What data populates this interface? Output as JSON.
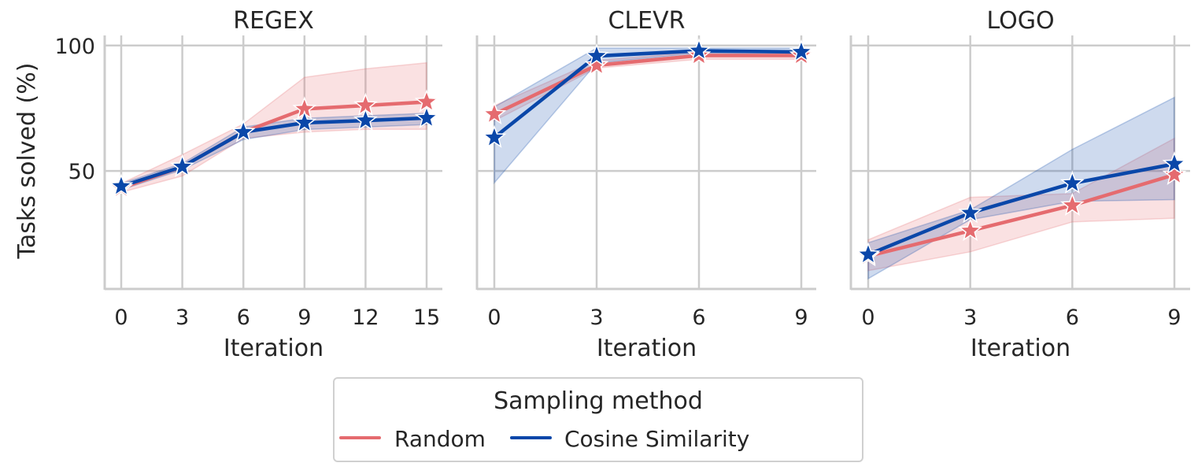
{
  "colors": {
    "Random": "#e56b6f",
    "Cosine Similarity": "#0a47a9",
    "grid": "#cccccc"
  },
  "chart_data": [
    {
      "type": "line",
      "title": "REGEX",
      "xlabel": "Iteration",
      "ylabel": "Tasks solved (%)",
      "x": [
        0,
        3,
        6,
        9,
        12,
        15
      ],
      "xticks": [
        "0",
        "3",
        "6",
        "9",
        "12",
        "15"
      ],
      "yticks": [
        "50",
        "100"
      ],
      "ylim": [
        3,
        104
      ],
      "grid": true,
      "marker": "star",
      "series": [
        {
          "name": "Random",
          "values": [
            43.2,
            51.7,
            65.5,
            74.7,
            76.1,
            77.5
          ],
          "lower": [
            41.5,
            48,
            63,
            65.5,
            66.6,
            66.6
          ],
          "upper": [
            45,
            56.5,
            68.7,
            87.3,
            90.7,
            93.1
          ]
        },
        {
          "name": "Cosine Similarity",
          "values": [
            43.9,
            51.7,
            65.5,
            69.2,
            70.1,
            71.1
          ],
          "lower": [
            42.5,
            50.5,
            62.5,
            66.5,
            67.5,
            68.5
          ],
          "upper": [
            45,
            53,
            67.5,
            71,
            72,
            73
          ]
        }
      ]
    },
    {
      "type": "line",
      "title": "CLEVR",
      "xlabel": "Iteration",
      "x": [
        0,
        3,
        6,
        9
      ],
      "xticks": [
        "0",
        "3",
        "6",
        "9"
      ],
      "ylim": [
        3,
        104
      ],
      "grid": true,
      "marker": "star",
      "series": [
        {
          "name": "Random",
          "values": [
            72.6,
            92.1,
            96,
            96
          ],
          "lower": [
            70,
            91,
            94.5,
            94.5
          ],
          "upper": [
            76,
            94,
            97.5,
            97
          ]
        },
        {
          "name": "Cosine Similarity",
          "values": [
            63.3,
            95.8,
            97.9,
            97.4
          ],
          "lower": [
            45.3,
            93,
            97,
            96
          ],
          "upper": [
            75.5,
            99,
            99,
            99
          ]
        }
      ]
    },
    {
      "type": "line",
      "title": "LOGO",
      "xlabel": "Iteration",
      "x": [
        0,
        3,
        6,
        9
      ],
      "xticks": [
        "0",
        "3",
        "6",
        "9"
      ],
      "ylim": [
        3,
        104
      ],
      "grid": true,
      "marker": "star",
      "series": [
        {
          "name": "Random",
          "values": [
            16.1,
            26.2,
            36.3,
            48.5
          ],
          "lower": [
            10.3,
            17.8,
            29.7,
            31.2
          ],
          "upper": [
            22.6,
            39.5,
            41,
            63
          ]
        },
        {
          "name": "Cosine Similarity",
          "values": [
            16.7,
            33.3,
            45.1,
            52.8
          ],
          "lower": [
            7.1,
            30.6,
            37.9,
            38.6
          ],
          "upper": [
            21.4,
            34.5,
            58.6,
            79.3
          ]
        }
      ]
    }
  ],
  "legend": {
    "title": "Sampling method",
    "position": "bottom-center",
    "entries": [
      "Random",
      "Cosine Similarity"
    ]
  }
}
